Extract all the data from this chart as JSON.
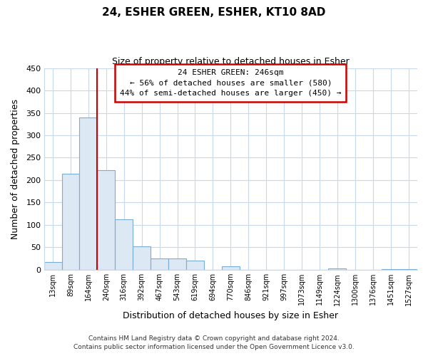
{
  "title": "24, ESHER GREEN, ESHER, KT10 8AD",
  "subtitle": "Size of property relative to detached houses in Esher",
  "xlabel": "Distribution of detached houses by size in Esher",
  "ylabel": "Number of detached properties",
  "bar_color": "#dce8f4",
  "bar_edge_color": "#7aadd4",
  "categories": [
    "13sqm",
    "89sqm",
    "164sqm",
    "240sqm",
    "316sqm",
    "392sqm",
    "467sqm",
    "543sqm",
    "619sqm",
    "694sqm",
    "770sqm",
    "846sqm",
    "921sqm",
    "997sqm",
    "1073sqm",
    "1149sqm",
    "1224sqm",
    "1300sqm",
    "1376sqm",
    "1451sqm",
    "1527sqm"
  ],
  "values": [
    18,
    215,
    340,
    222,
    113,
    53,
    26,
    25,
    20,
    0,
    7,
    0,
    0,
    0,
    0,
    0,
    3,
    0,
    0,
    2,
    2
  ],
  "vline_x_index": 3,
  "vline_color": "#cc0000",
  "annotation_title": "24 ESHER GREEN: 246sqm",
  "annotation_line1": "← 56% of detached houses are smaller (580)",
  "annotation_line2": "44% of semi-detached houses are larger (450) →",
  "annotation_box_color": "#ffffff",
  "annotation_box_edge_color": "#cc0000",
  "ylim": [
    0,
    450
  ],
  "yticks": [
    0,
    50,
    100,
    150,
    200,
    250,
    300,
    350,
    400,
    450
  ],
  "footer1": "Contains HM Land Registry data © Crown copyright and database right 2024.",
  "footer2": "Contains public sector information licensed under the Open Government Licence v3.0.",
  "bg_color": "#ffffff",
  "grid_color": "#c8d8ec"
}
